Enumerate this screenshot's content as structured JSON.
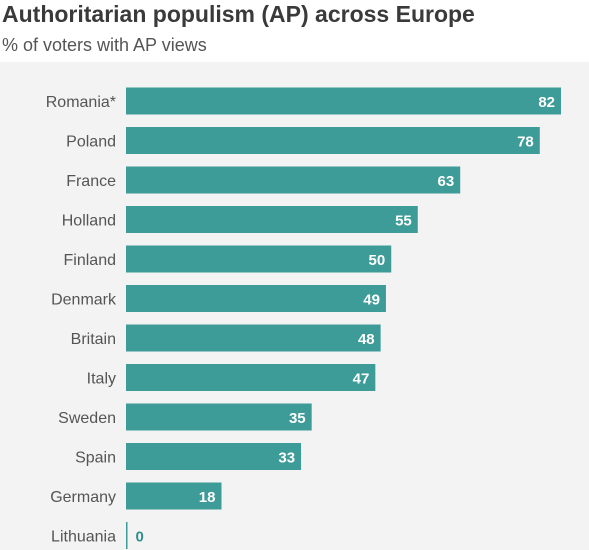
{
  "chart_data": {
    "type": "bar",
    "orientation": "horizontal",
    "title": "Authoritarian populism (AP) across Europe",
    "subtitle": "% of voters with AP views",
    "categories": [
      "Romania*",
      "Poland",
      "France",
      "Holland",
      "Finland",
      "Denmark",
      "Britain",
      "Italy",
      "Sweden",
      "Spain",
      "Germany",
      "Lithuania"
    ],
    "values": [
      82,
      78,
      63,
      55,
      50,
      49,
      48,
      47,
      35,
      33,
      18,
      0
    ],
    "xlim": [
      0,
      82
    ],
    "grid": false,
    "data_labels": true,
    "colors": {
      "bar": "#3d9b98",
      "label_inside": "#ffffff",
      "label_outside": "#2e8f8c",
      "category_text": "#555555"
    }
  }
}
